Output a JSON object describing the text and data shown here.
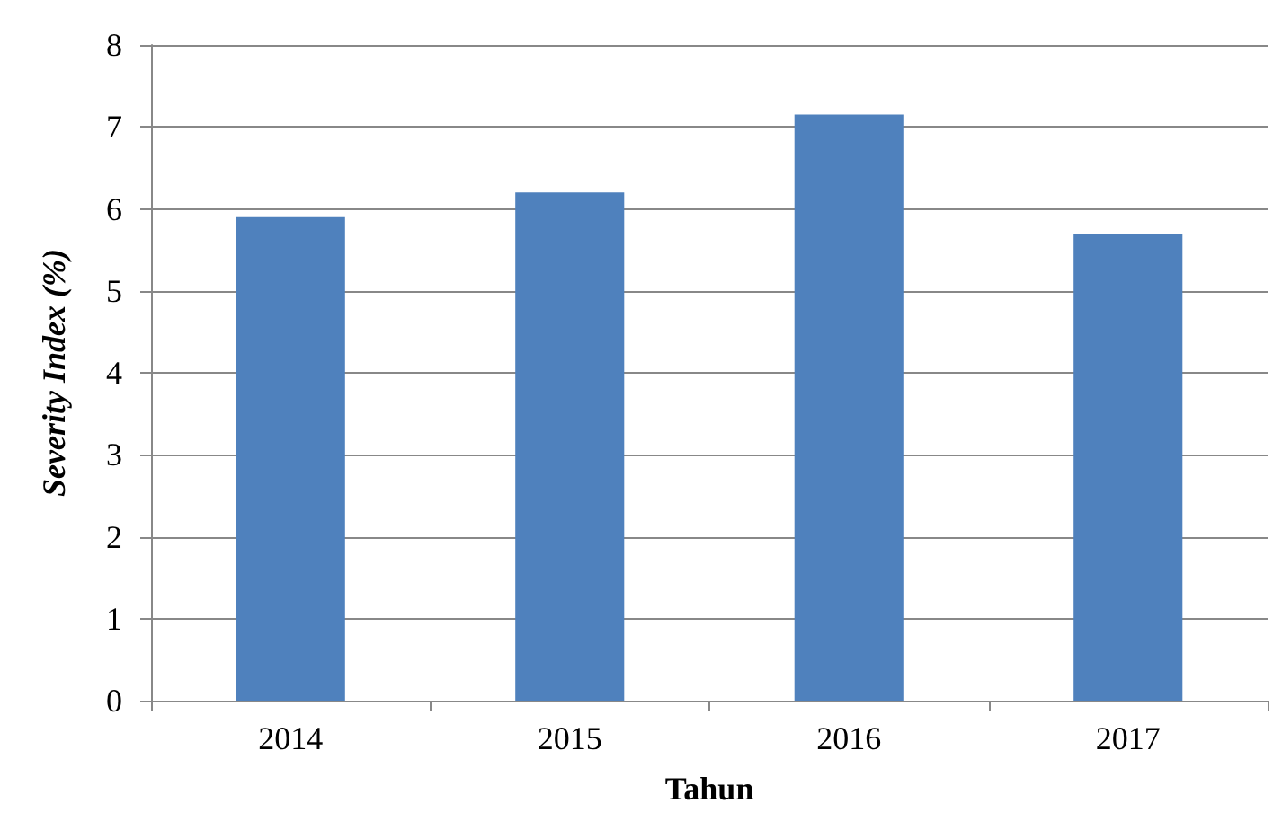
{
  "chart_data": {
    "type": "bar",
    "xlabel": "Tahun",
    "ylabel": "Severity Index (%)",
    "categories": [
      "2014",
      "2015",
      "2016",
      "2017"
    ],
    "values": [
      5.9,
      6.2,
      7.15,
      5.7
    ],
    "color": "#4f81bd",
    "ylim": [
      0,
      8
    ],
    "yticks": [
      0,
      1,
      2,
      3,
      4,
      5,
      6,
      7,
      8
    ],
    "grid": "y"
  }
}
